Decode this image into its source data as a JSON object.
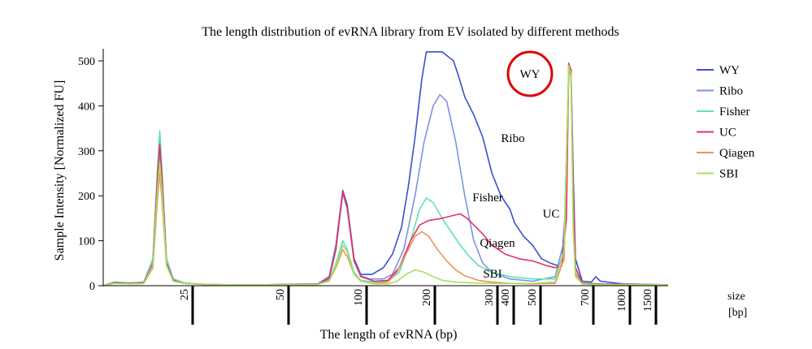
{
  "chart_data": {
    "type": "line",
    "title": "The length distribution of evRNA library from EV isolated by different methods",
    "xlabel": "The length of evRNA (bp)",
    "ylabel": "Sample Intensity  [Normalized FU]",
    "x_unit_label": "size",
    "x_unit_sub": "[bp]",
    "ylim": [
      0,
      520
    ],
    "y_ticks": [
      0,
      100,
      200,
      300,
      400,
      500
    ],
    "x_ticks": [
      "25",
      "50",
      "100",
      "200",
      "300",
      "400",
      "500",
      "700",
      "1000",
      "1500"
    ],
    "legend_position": "top-right",
    "series": [
      {
        "name": "WY",
        "color": "#3a4fd0",
        "points": [
          [
            0,
            0
          ],
          [
            5,
            8
          ],
          [
            12,
            6
          ],
          [
            18,
            8
          ],
          [
            22,
            60
          ],
          [
            24,
            250
          ],
          [
            25,
            320
          ],
          [
            26,
            250
          ],
          [
            28,
            60
          ],
          [
            31,
            15
          ],
          [
            36,
            6
          ],
          [
            44,
            3
          ],
          [
            56,
            2
          ],
          [
            70,
            2
          ],
          [
            85,
            3
          ],
          [
            95,
            4
          ],
          [
            100,
            20
          ],
          [
            103,
            90
          ],
          [
            106,
            212
          ],
          [
            108,
            180
          ],
          [
            111,
            60
          ],
          [
            114,
            25
          ],
          [
            119,
            25
          ],
          [
            124,
            40
          ],
          [
            128,
            70
          ],
          [
            132,
            130
          ],
          [
            135,
            220
          ],
          [
            138,
            330
          ],
          [
            141,
            460
          ],
          [
            143,
            520
          ],
          [
            150,
            520
          ],
          [
            155,
            500
          ],
          [
            157,
            470
          ],
          [
            160,
            420
          ],
          [
            164,
            380
          ],
          [
            168,
            330
          ],
          [
            172,
            250
          ],
          [
            176,
            200
          ],
          [
            178,
            185
          ],
          [
            180,
            170
          ],
          [
            182,
            140
          ],
          [
            186,
            110
          ],
          [
            190,
            90
          ],
          [
            194,
            60
          ],
          [
            198,
            50
          ],
          [
            201,
            45
          ],
          [
            203,
            55
          ],
          [
            205,
            200
          ],
          [
            206,
            490
          ],
          [
            207,
            480
          ],
          [
            208,
            250
          ],
          [
            209,
            60
          ],
          [
            212,
            10
          ],
          [
            216,
            8
          ],
          [
            218,
            20
          ],
          [
            220,
            10
          ],
          [
            230,
            4
          ],
          [
            250,
            2
          ]
        ]
      },
      {
        "name": "Ribo",
        "color": "#7d93e0",
        "points": [
          [
            0,
            0
          ],
          [
            5,
            6
          ],
          [
            12,
            5
          ],
          [
            18,
            6
          ],
          [
            22,
            50
          ],
          [
            24,
            220
          ],
          [
            25,
            305
          ],
          [
            26,
            220
          ],
          [
            28,
            50
          ],
          [
            31,
            12
          ],
          [
            36,
            5
          ],
          [
            44,
            3
          ],
          [
            56,
            2
          ],
          [
            70,
            2
          ],
          [
            85,
            3
          ],
          [
            95,
            3
          ],
          [
            100,
            18
          ],
          [
            103,
            85
          ],
          [
            106,
            205
          ],
          [
            108,
            170
          ],
          [
            111,
            55
          ],
          [
            114,
            22
          ],
          [
            118,
            15
          ],
          [
            124,
            15
          ],
          [
            128,
            25
          ],
          [
            133,
            80
          ],
          [
            138,
            200
          ],
          [
            142,
            320
          ],
          [
            146,
            400
          ],
          [
            149,
            425
          ],
          [
            152,
            410
          ],
          [
            156,
            320
          ],
          [
            160,
            200
          ],
          [
            164,
            100
          ],
          [
            168,
            50
          ],
          [
            172,
            30
          ],
          [
            180,
            15
          ],
          [
            190,
            10
          ],
          [
            200,
            20
          ],
          [
            204,
            100
          ],
          [
            206,
            480
          ],
          [
            207,
            470
          ],
          [
            208,
            200
          ],
          [
            209,
            40
          ],
          [
            212,
            6
          ],
          [
            220,
            4
          ],
          [
            250,
            2
          ]
        ]
      },
      {
        "name": "Fisher",
        "color": "#5ee0c0",
        "points": [
          [
            0,
            0
          ],
          [
            5,
            7
          ],
          [
            12,
            6
          ],
          [
            18,
            7
          ],
          [
            22,
            60
          ],
          [
            24,
            260
          ],
          [
            25,
            345
          ],
          [
            26,
            260
          ],
          [
            28,
            60
          ],
          [
            31,
            15
          ],
          [
            36,
            6
          ],
          [
            44,
            3
          ],
          [
            56,
            2
          ],
          [
            70,
            2
          ],
          [
            85,
            2
          ],
          [
            95,
            3
          ],
          [
            100,
            12
          ],
          [
            103,
            50
          ],
          [
            106,
            100
          ],
          [
            108,
            80
          ],
          [
            111,
            30
          ],
          [
            114,
            12
          ],
          [
            120,
            8
          ],
          [
            126,
            10
          ],
          [
            131,
            30
          ],
          [
            136,
            100
          ],
          [
            140,
            170
          ],
          [
            143,
            195
          ],
          [
            146,
            185
          ],
          [
            150,
            150
          ],
          [
            154,
            120
          ],
          [
            158,
            90
          ],
          [
            162,
            65
          ],
          [
            166,
            45
          ],
          [
            172,
            30
          ],
          [
            180,
            20
          ],
          [
            190,
            15
          ],
          [
            200,
            15
          ],
          [
            204,
            80
          ],
          [
            206,
            485
          ],
          [
            207,
            470
          ],
          [
            208,
            150
          ],
          [
            209,
            30
          ],
          [
            212,
            5
          ],
          [
            220,
            3
          ],
          [
            250,
            2
          ]
        ]
      },
      {
        "name": "UC",
        "color": "#e83060",
        "points": [
          [
            0,
            0
          ],
          [
            5,
            6
          ],
          [
            12,
            5
          ],
          [
            18,
            6
          ],
          [
            22,
            50
          ],
          [
            24,
            240
          ],
          [
            25,
            315
          ],
          [
            26,
            240
          ],
          [
            28,
            50
          ],
          [
            31,
            12
          ],
          [
            36,
            5
          ],
          [
            44,
            3
          ],
          [
            56,
            2
          ],
          [
            70,
            2
          ],
          [
            85,
            3
          ],
          [
            95,
            3
          ],
          [
            100,
            16
          ],
          [
            103,
            80
          ],
          [
            106,
            210
          ],
          [
            108,
            175
          ],
          [
            111,
            55
          ],
          [
            114,
            20
          ],
          [
            120,
            10
          ],
          [
            126,
            12
          ],
          [
            131,
            40
          ],
          [
            136,
            100
          ],
          [
            140,
            135
          ],
          [
            144,
            145
          ],
          [
            150,
            150
          ],
          [
            154,
            155
          ],
          [
            158,
            160
          ],
          [
            161,
            150
          ],
          [
            164,
            135
          ],
          [
            168,
            115
          ],
          [
            172,
            90
          ],
          [
            178,
            70
          ],
          [
            184,
            60
          ],
          [
            190,
            55
          ],
          [
            196,
            45
          ],
          [
            200,
            40
          ],
          [
            203,
            45
          ],
          [
            205,
            150
          ],
          [
            206,
            495
          ],
          [
            207,
            480
          ],
          [
            208,
            200
          ],
          [
            209,
            40
          ],
          [
            212,
            5
          ],
          [
            220,
            3
          ],
          [
            250,
            2
          ]
        ]
      },
      {
        "name": "Qiagen",
        "color": "#f09060",
        "points": [
          [
            0,
            0
          ],
          [
            5,
            5
          ],
          [
            12,
            4
          ],
          [
            18,
            5
          ],
          [
            22,
            40
          ],
          [
            24,
            190
          ],
          [
            25,
            250
          ],
          [
            26,
            190
          ],
          [
            28,
            45
          ],
          [
            31,
            10
          ],
          [
            36,
            5
          ],
          [
            44,
            3
          ],
          [
            56,
            2
          ],
          [
            70,
            2
          ],
          [
            85,
            2
          ],
          [
            95,
            3
          ],
          [
            100,
            12
          ],
          [
            103,
            40
          ],
          [
            106,
            80
          ],
          [
            108,
            65
          ],
          [
            111,
            25
          ],
          [
            114,
            10
          ],
          [
            120,
            5
          ],
          [
            126,
            8
          ],
          [
            130,
            30
          ],
          [
            134,
            70
          ],
          [
            138,
            110
          ],
          [
            141,
            120
          ],
          [
            144,
            110
          ],
          [
            148,
            80
          ],
          [
            152,
            55
          ],
          [
            156,
            35
          ],
          [
            160,
            22
          ],
          [
            166,
            12
          ],
          [
            172,
            8
          ],
          [
            180,
            5
          ],
          [
            190,
            4
          ],
          [
            200,
            5
          ],
          [
            204,
            60
          ],
          [
            206,
            480
          ],
          [
            207,
            465
          ],
          [
            208,
            150
          ],
          [
            209,
            25
          ],
          [
            212,
            4
          ],
          [
            220,
            2
          ],
          [
            250,
            2
          ]
        ]
      },
      {
        "name": "SBI",
        "color": "#a8e060",
        "points": [
          [
            0,
            0
          ],
          [
            5,
            5
          ],
          [
            12,
            4
          ],
          [
            18,
            5
          ],
          [
            22,
            45
          ],
          [
            24,
            210
          ],
          [
            25,
            275
          ],
          [
            26,
            210
          ],
          [
            28,
            45
          ],
          [
            31,
            10
          ],
          [
            36,
            5
          ],
          [
            44,
            3
          ],
          [
            56,
            2
          ],
          [
            70,
            2
          ],
          [
            85,
            2
          ],
          [
            95,
            3
          ],
          [
            100,
            10
          ],
          [
            103,
            45
          ],
          [
            106,
            90
          ],
          [
            108,
            75
          ],
          [
            111,
            25
          ],
          [
            114,
            10
          ],
          [
            120,
            4
          ],
          [
            126,
            4
          ],
          [
            130,
            10
          ],
          [
            134,
            25
          ],
          [
            138,
            35
          ],
          [
            142,
            30
          ],
          [
            146,
            20
          ],
          [
            150,
            12
          ],
          [
            156,
            8
          ],
          [
            164,
            6
          ],
          [
            175,
            5
          ],
          [
            190,
            5
          ],
          [
            200,
            8
          ],
          [
            204,
            80
          ],
          [
            206,
            490
          ],
          [
            207,
            470
          ],
          [
            208,
            120
          ],
          [
            209,
            20
          ],
          [
            212,
            4
          ],
          [
            220,
            2
          ],
          [
            250,
            2
          ]
        ]
      }
    ],
    "annotations": [
      {
        "text": "WY",
        "circled": true,
        "color": "#e00000"
      },
      {
        "text": "Ribo"
      },
      {
        "text": "Fisher"
      },
      {
        "text": "UC"
      },
      {
        "text": "Qiagen"
      },
      {
        "text": "SBI"
      }
    ]
  }
}
